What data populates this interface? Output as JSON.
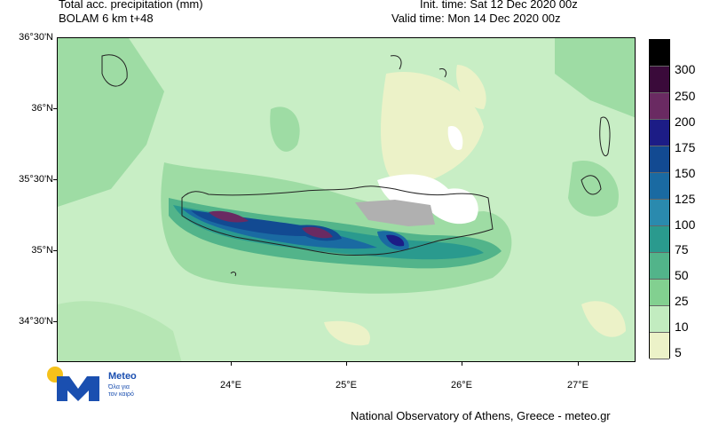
{
  "header": {
    "title": "Total acc. precipitation (mm)",
    "model": "BOLAM 6 km t+48",
    "init_time": "Init. time: Sat 12 Dec 2020 00z",
    "valid_time": "Valid time: Mon 14 Dec 2020 00z"
  },
  "map": {
    "lat_labels": [
      "36°30'N",
      "36°N",
      "35°30'N",
      "35°N",
      "34°30'N"
    ],
    "lon_labels": [
      "24°E",
      "25°E",
      "26°E",
      "27°E"
    ]
  },
  "colorbar": {
    "labels": [
      "300",
      "250",
      "200",
      "175",
      "150",
      "125",
      "100",
      "75",
      "50",
      "25",
      "10",
      "5"
    ],
    "colors": [
      "#000000",
      "#3a0a3a",
      "#6a2a62",
      "#1c1c86",
      "#124a92",
      "#1a6aa2",
      "#2a8aae",
      "#2a9a8e",
      "#52b48a",
      "#82d090",
      "#c2ecc0",
      "#ecf2c8",
      "#ffffff"
    ]
  },
  "logo": {
    "brand": "Meteo",
    "tagline_1": "Όλα για",
    "tagline_2": "τον καιρό"
  },
  "footer": {
    "credit": "National Observatory of Athens, Greece - meteo.gr"
  }
}
